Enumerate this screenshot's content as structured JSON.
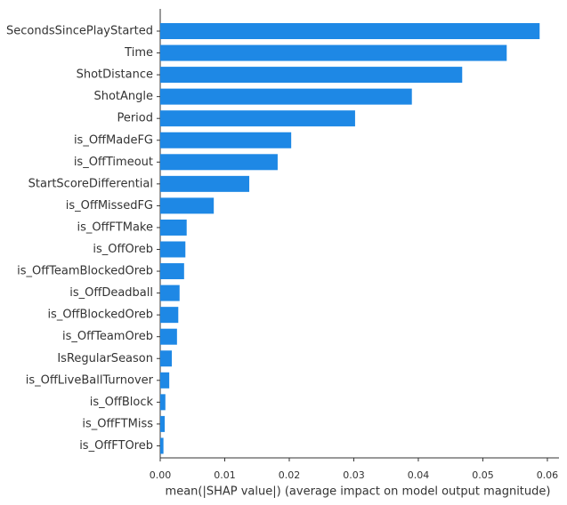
{
  "chart_data": {
    "type": "hbar",
    "categories": [
      "SecondsSincePlayStarted",
      "Time",
      "ShotDistance",
      "ShotAngle",
      "Period",
      "is_OffMadeFG",
      "is_OffTimeout",
      "StartScoreDifferential",
      "is_OffMissedFG",
      "is_OffFTMake",
      "is_OffOreb",
      "is_OffTeamBlockedOreb",
      "is_OffDeadball",
      "is_OffBlockedOreb",
      "is_OffTeamOreb",
      "IsRegularSeason",
      "is_OffLiveBallTurnover",
      "is_OffBlock",
      "is_OffFTMiss",
      "is_OffFTOreb"
    ],
    "values": [
      0.0588,
      0.0537,
      0.0468,
      0.039,
      0.0302,
      0.0203,
      0.0182,
      0.0138,
      0.0083,
      0.0041,
      0.0039,
      0.0037,
      0.003,
      0.0028,
      0.0026,
      0.0018,
      0.0014,
      0.0008,
      0.0007,
      0.0005
    ],
    "color": "#1e88e5",
    "x_label": "mean(|SHAP value|) (average impact on model output magnitude)",
    "xlim": [
      0,
      0.0618
    ],
    "xticks": [
      {
        "value": 0,
        "label": "0.00"
      },
      0.01,
      0.02,
      0.03,
      0.04,
      0.05,
      0.06
    ]
  }
}
